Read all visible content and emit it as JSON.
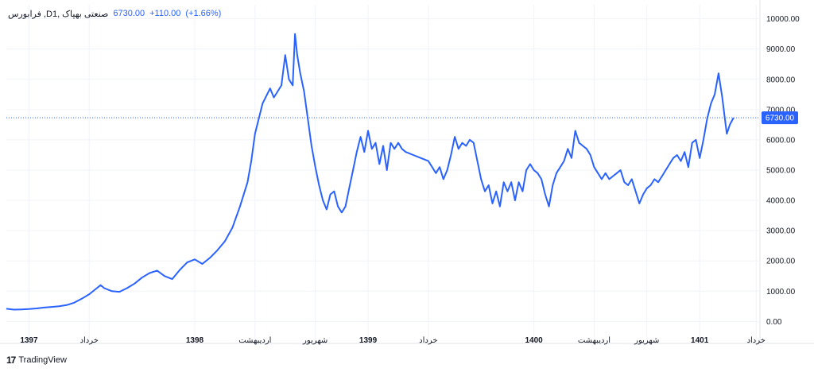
{
  "header": {
    "symbol": "فرابورس ,Dصنعتی بهپاک ,1",
    "last": "6730.00",
    "change": "+110.00",
    "change_pct": "(+1.66%)"
  },
  "footer": {
    "brand": "TradingView",
    "logo_glyph": "17"
  },
  "colors": {
    "line": "#2962ff",
    "grid": "#f0f3fa",
    "price_line": "#2962ff",
    "price_tag": "#2962ff"
  },
  "chart_data": {
    "type": "line",
    "ylim": [
      -200,
      10200
    ],
    "grid": true,
    "y_ticks": [
      "10000.00",
      "9000.00",
      "8000.00",
      "7000.00",
      "6000.00",
      "5000.00",
      "4000.00",
      "3000.00",
      "2000.00",
      "1000.00",
      "0.00"
    ],
    "x_ticks": [
      {
        "label": "1397",
        "year": true,
        "x": 0.03
      },
      {
        "label": "خرداد",
        "year": false,
        "x": 0.11
      },
      {
        "label": "1398",
        "year": true,
        "x": 0.25
      },
      {
        "label": "اردیبهشت",
        "year": false,
        "x": 0.33
      },
      {
        "label": "شهریور",
        "year": false,
        "x": 0.41
      },
      {
        "label": "1399",
        "year": true,
        "x": 0.48
      },
      {
        "label": "خرداد",
        "year": false,
        "x": 0.56
      },
      {
        "label": "1400",
        "year": true,
        "x": 0.7
      },
      {
        "label": "اردیبهشت",
        "year": false,
        "x": 0.78
      },
      {
        "label": "شهریور",
        "year": false,
        "x": 0.85
      },
      {
        "label": "1401",
        "year": true,
        "x": 0.92
      },
      {
        "label": "خرداد",
        "year": false,
        "x": 0.995
      }
    ],
    "last_value": 6730,
    "last_label": "6730.00",
    "series": [
      {
        "values": [
          [
            0.0,
            420
          ],
          [
            0.01,
            390
          ],
          [
            0.02,
            400
          ],
          [
            0.03,
            410
          ],
          [
            0.04,
            430
          ],
          [
            0.05,
            460
          ],
          [
            0.06,
            480
          ],
          [
            0.07,
            500
          ],
          [
            0.08,
            540
          ],
          [
            0.09,
            620
          ],
          [
            0.1,
            750
          ],
          [
            0.11,
            900
          ],
          [
            0.12,
            1100
          ],
          [
            0.125,
            1200
          ],
          [
            0.13,
            1100
          ],
          [
            0.14,
            1000
          ],
          [
            0.15,
            980
          ],
          [
            0.16,
            1100
          ],
          [
            0.17,
            1250
          ],
          [
            0.18,
            1450
          ],
          [
            0.19,
            1600
          ],
          [
            0.2,
            1680
          ],
          [
            0.21,
            1500
          ],
          [
            0.22,
            1400
          ],
          [
            0.23,
            1700
          ],
          [
            0.24,
            1950
          ],
          [
            0.25,
            2050
          ],
          [
            0.26,
            1900
          ],
          [
            0.27,
            2100
          ],
          [
            0.28,
            2350
          ],
          [
            0.29,
            2650
          ],
          [
            0.3,
            3100
          ],
          [
            0.31,
            3800
          ],
          [
            0.32,
            4600
          ],
          [
            0.325,
            5300
          ],
          [
            0.33,
            6200
          ],
          [
            0.34,
            7200
          ],
          [
            0.35,
            7700
          ],
          [
            0.355,
            7400
          ],
          [
            0.36,
            7600
          ],
          [
            0.365,
            7800
          ],
          [
            0.37,
            8800
          ],
          [
            0.375,
            8000
          ],
          [
            0.38,
            7800
          ],
          [
            0.383,
            9500
          ],
          [
            0.386,
            8800
          ],
          [
            0.39,
            8200
          ],
          [
            0.395,
            7600
          ],
          [
            0.4,
            6700
          ],
          [
            0.405,
            5800
          ],
          [
            0.41,
            5100
          ],
          [
            0.415,
            4500
          ],
          [
            0.42,
            4000
          ],
          [
            0.425,
            3700
          ],
          [
            0.43,
            4200
          ],
          [
            0.435,
            4300
          ],
          [
            0.44,
            3800
          ],
          [
            0.445,
            3600
          ],
          [
            0.45,
            3800
          ],
          [
            0.455,
            4400
          ],
          [
            0.46,
            5000
          ],
          [
            0.465,
            5600
          ],
          [
            0.47,
            6100
          ],
          [
            0.475,
            5600
          ],
          [
            0.48,
            6300
          ],
          [
            0.485,
            5700
          ],
          [
            0.49,
            5900
          ],
          [
            0.495,
            5200
          ],
          [
            0.5,
            5800
          ],
          [
            0.505,
            5000
          ],
          [
            0.51,
            5900
          ],
          [
            0.515,
            5700
          ],
          [
            0.52,
            5900
          ],
          [
            0.525,
            5700
          ],
          [
            0.53,
            5600
          ],
          [
            0.54,
            5500
          ],
          [
            0.55,
            5400
          ],
          [
            0.56,
            5300
          ],
          [
            0.57,
            4900
          ],
          [
            0.575,
            5100
          ],
          [
            0.58,
            4700
          ],
          [
            0.585,
            5000
          ],
          [
            0.59,
            5500
          ],
          [
            0.595,
            6100
          ],
          [
            0.6,
            5700
          ],
          [
            0.605,
            5900
          ],
          [
            0.61,
            5800
          ],
          [
            0.615,
            6000
          ],
          [
            0.62,
            5900
          ],
          [
            0.625,
            5300
          ],
          [
            0.63,
            4700
          ],
          [
            0.635,
            4300
          ],
          [
            0.64,
            4500
          ],
          [
            0.645,
            3900
          ],
          [
            0.65,
            4300
          ],
          [
            0.655,
            3800
          ],
          [
            0.66,
            4600
          ],
          [
            0.665,
            4300
          ],
          [
            0.67,
            4600
          ],
          [
            0.675,
            4000
          ],
          [
            0.68,
            4600
          ],
          [
            0.685,
            4300
          ],
          [
            0.69,
            5000
          ],
          [
            0.695,
            5200
          ],
          [
            0.7,
            5000
          ],
          [
            0.705,
            4900
          ],
          [
            0.71,
            4700
          ],
          [
            0.715,
            4200
          ],
          [
            0.72,
            3800
          ],
          [
            0.725,
            4500
          ],
          [
            0.73,
            4900
          ],
          [
            0.735,
            5100
          ],
          [
            0.74,
            5300
          ],
          [
            0.745,
            5700
          ],
          [
            0.75,
            5400
          ],
          [
            0.755,
            6300
          ],
          [
            0.76,
            5900
          ],
          [
            0.765,
            5800
          ],
          [
            0.77,
            5700
          ],
          [
            0.775,
            5500
          ],
          [
            0.78,
            5100
          ],
          [
            0.785,
            4900
          ],
          [
            0.79,
            4700
          ],
          [
            0.795,
            4900
          ],
          [
            0.8,
            4700
          ],
          [
            0.805,
            4800
          ],
          [
            0.81,
            4900
          ],
          [
            0.815,
            5000
          ],
          [
            0.82,
            4600
          ],
          [
            0.825,
            4500
          ],
          [
            0.83,
            4700
          ],
          [
            0.835,
            4300
          ],
          [
            0.84,
            3900
          ],
          [
            0.845,
            4200
          ],
          [
            0.85,
            4400
          ],
          [
            0.855,
            4500
          ],
          [
            0.86,
            4700
          ],
          [
            0.865,
            4600
          ],
          [
            0.87,
            4800
          ],
          [
            0.875,
            5000
          ],
          [
            0.88,
            5200
          ],
          [
            0.885,
            5400
          ],
          [
            0.89,
            5500
          ],
          [
            0.895,
            5300
          ],
          [
            0.9,
            5600
          ],
          [
            0.905,
            5100
          ],
          [
            0.91,
            5900
          ],
          [
            0.915,
            6000
          ],
          [
            0.92,
            5400
          ],
          [
            0.925,
            6000
          ],
          [
            0.93,
            6700
          ],
          [
            0.935,
            7200
          ],
          [
            0.94,
            7500
          ],
          [
            0.945,
            8200
          ],
          [
            0.95,
            7400
          ],
          [
            0.953,
            6800
          ],
          [
            0.956,
            6200
          ],
          [
            0.96,
            6500
          ],
          [
            0.965,
            6730
          ]
        ]
      }
    ]
  }
}
